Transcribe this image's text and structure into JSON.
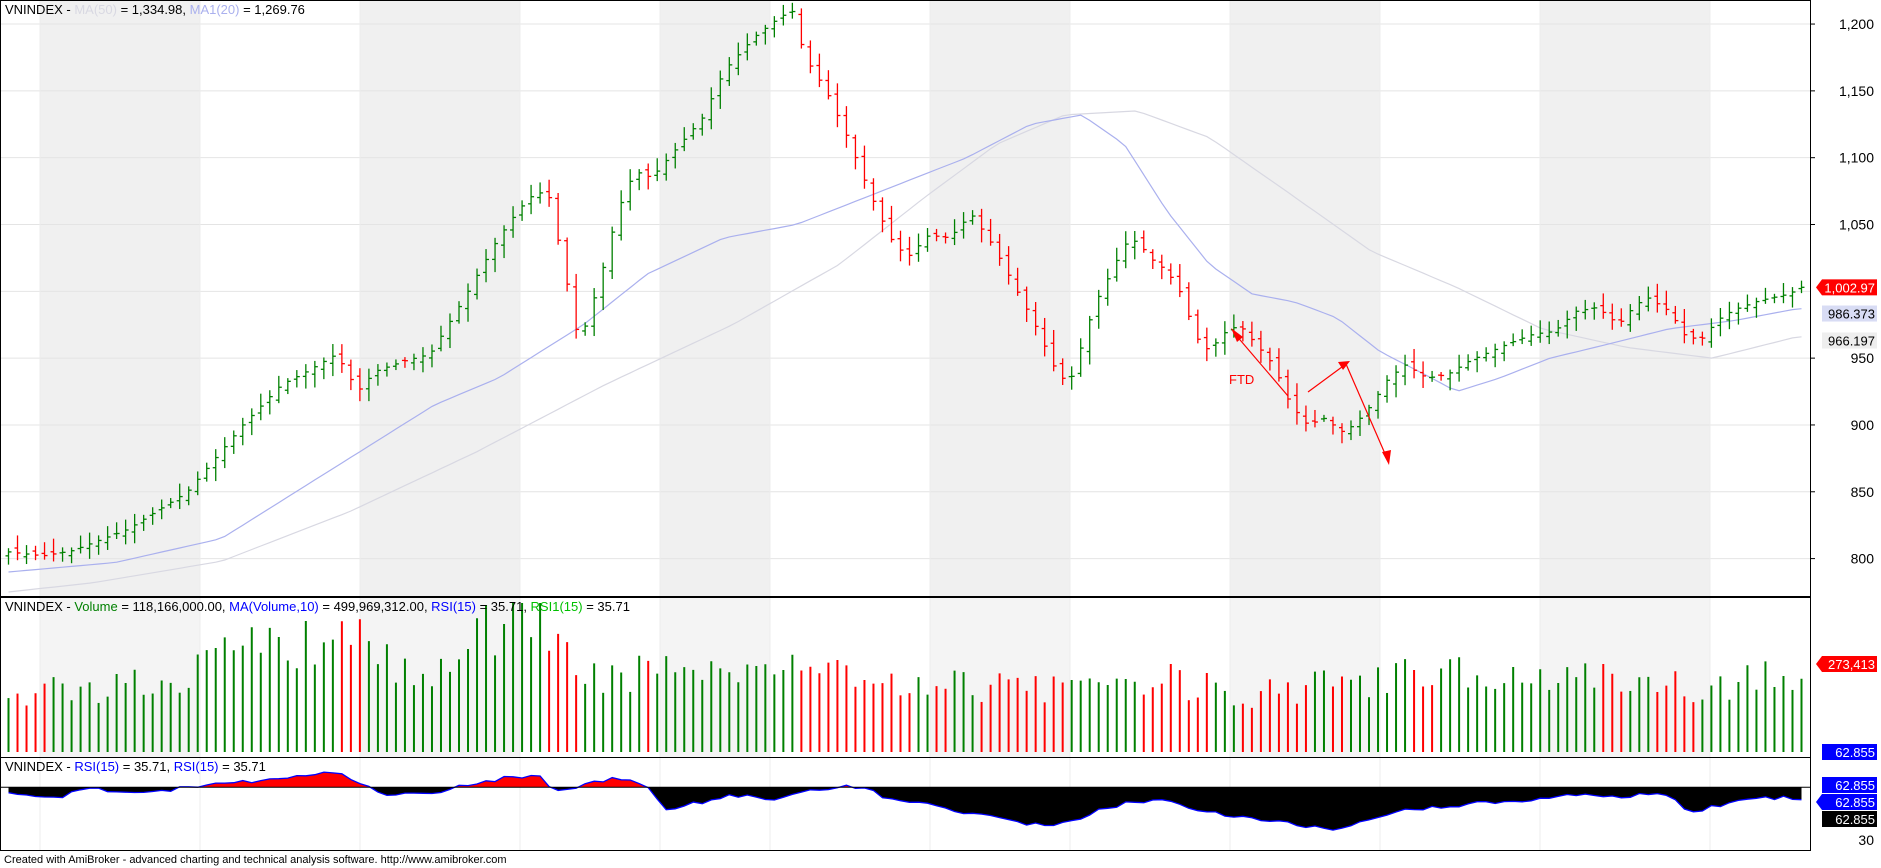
{
  "app": {
    "footer": "Created with AmiBroker - advanced charting and technical analysis software. http://www.amibroker.com"
  },
  "colors": {
    "up": "#008000",
    "down": "#ff0000",
    "ma20": "#aab0ee",
    "ma50": "#d8d8e2",
    "rsi_pos": "#ff0000",
    "rsi_neg": "#000000",
    "rsi_line": "#0000ff",
    "volume_title": "#008000",
    "ma_volume_title": "#0000ff",
    "rsi_title": "#0000ff",
    "rsi1_title": "#00c000"
  },
  "price_panel": {
    "title_parts": [
      {
        "text": "VNINDEX - ",
        "color": "#000000"
      },
      {
        "text": "MA(50)",
        "color": "#d8d8e2"
      },
      {
        "text": " = 1,334.98, ",
        "color": "#000000"
      },
      {
        "text": "MA1(20)",
        "color": "#aab0ee"
      },
      {
        "text": " = 1,269.76",
        "color": "#000000"
      }
    ],
    "y_ticks": [
      "1,200",
      "1,150",
      "1,100",
      "1,050",
      "950",
      "900",
      "850",
      "800"
    ],
    "badges": [
      {
        "text": "1,002.97",
        "bg": "#ff0000",
        "fg": "#ffffff",
        "arrow": true
      },
      {
        "text": "986.373",
        "bg": "#d8dcf4",
        "fg": "#000000",
        "arrow": false
      },
      {
        "text": "966.197",
        "bg": "#eeeeee",
        "fg": "#000000",
        "arrow": false
      }
    ],
    "annotation": "FTD"
  },
  "volume_panel": {
    "title_parts": [
      {
        "text": "VNINDEX - ",
        "color": "#000000"
      },
      {
        "text": "Volume",
        "color": "#008000"
      },
      {
        "text": " = 118,166,000.00, ",
        "color": "#000000"
      },
      {
        "text": "MA(Volume,10)",
        "color": "#0000ff"
      },
      {
        "text": " = 499,969,312.00, ",
        "color": "#000000"
      },
      {
        "text": "RSI(15)",
        "color": "#0000ff"
      },
      {
        "text": " = 35.71, ",
        "color": "#000000"
      },
      {
        "text": "RSI1(15)",
        "color": "#00c000"
      },
      {
        "text": " = 35.71",
        "color": "#000000"
      }
    ],
    "badges": [
      {
        "text": "273,413",
        "bg": "#ff0000",
        "fg": "#ffffff",
        "arrow": true
      },
      {
        "text": "62.855",
        "bg": "#0000ff",
        "fg": "#ffffff",
        "arrow": false
      }
    ]
  },
  "rsi_panel": {
    "title_parts": [
      {
        "text": "VNINDEX - ",
        "color": "#000000"
      },
      {
        "text": "RSI(15)",
        "color": "#0000ff"
      },
      {
        "text": " = 35.71, ",
        "color": "#000000"
      },
      {
        "text": "RSI(15)",
        "color": "#0000ff"
      },
      {
        "text": " = 35.71",
        "color": "#000000"
      }
    ],
    "y_ticks": [
      "30"
    ],
    "badges": [
      {
        "text": "62.855",
        "bg": "#0000ff",
        "fg": "#ffffff",
        "arrow": false
      },
      {
        "text": "62.855",
        "bg": "#0000ff",
        "fg": "#ffffff",
        "arrow": true
      },
      {
        "text": "62.855",
        "bg": "#000000",
        "fg": "#ffffff",
        "arrow": false
      }
    ]
  },
  "chart_data": {
    "type": "ohlc",
    "series_name": "VNINDEX",
    "ylim": [
      775,
      1215
    ],
    "grid": true,
    "bar_count": 200,
    "close_keypoints": [
      [
        0,
        805
      ],
      [
        8,
        802
      ],
      [
        15,
        806
      ],
      [
        28,
        822
      ],
      [
        42,
        850
      ],
      [
        55,
        900
      ],
      [
        64,
        930
      ],
      [
        70,
        940
      ],
      [
        77,
        953
      ],
      [
        82,
        925
      ],
      [
        86,
        940
      ],
      [
        93,
        948
      ],
      [
        99,
        953
      ],
      [
        107,
        995
      ],
      [
        115,
        1040
      ],
      [
        120,
        1062
      ],
      [
        124,
        1075
      ],
      [
        127,
        1070
      ],
      [
        131,
        1008
      ],
      [
        134,
        960
      ],
      [
        139,
        1010
      ],
      [
        143,
        1060
      ],
      [
        147,
        1090
      ],
      [
        151,
        1085
      ],
      [
        155,
        1100
      ],
      [
        163,
        1130
      ],
      [
        168,
        1165
      ],
      [
        175,
        1190
      ],
      [
        181,
        1205
      ],
      [
        184,
        1210
      ],
      [
        187,
        1175
      ],
      [
        192,
        1150
      ],
      [
        197,
        1115
      ],
      [
        202,
        1075
      ],
      [
        207,
        1040
      ],
      [
        211,
        1025
      ],
      [
        216,
        1042
      ],
      [
        221,
        1040
      ],
      [
        226,
        1058
      ],
      [
        231,
        1035
      ],
      [
        236,
        1005
      ],
      [
        241,
        975
      ],
      [
        246,
        940
      ],
      [
        249,
        930
      ],
      [
        252,
        960
      ],
      [
        255,
        990
      ],
      [
        259,
        1015
      ],
      [
        262,
        1035
      ],
      [
        265,
        1038
      ],
      [
        268,
        1025
      ],
      [
        272,
        1015
      ],
      [
        275,
        1000
      ],
      [
        279,
        965
      ],
      [
        282,
        955
      ],
      [
        285,
        968
      ],
      [
        289,
        975
      ],
      [
        293,
        960
      ],
      [
        297,
        945
      ],
      [
        301,
        915
      ],
      [
        305,
        900
      ],
      [
        309,
        905
      ],
      [
        313,
        895
      ],
      [
        316,
        900
      ],
      [
        320,
        915
      ],
      [
        324,
        935
      ],
      [
        328,
        945
      ],
      [
        333,
        935
      ],
      [
        338,
        938
      ],
      [
        343,
        948
      ],
      [
        348,
        955
      ],
      [
        353,
        962
      ],
      [
        358,
        968
      ],
      [
        363,
        970
      ],
      [
        368,
        985
      ],
      [
        373,
        988
      ],
      [
        378,
        975
      ],
      [
        382,
        990
      ],
      [
        385,
        995
      ],
      [
        390,
        985
      ],
      [
        394,
        965
      ],
      [
        398,
        965
      ],
      [
        401,
        978
      ],
      [
        405,
        986
      ],
      [
        411,
        993
      ],
      [
        418,
        998
      ],
      [
        421,
        1003
      ]
    ],
    "ma20_keypoints": [
      [
        0,
        790
      ],
      [
        25,
        797
      ],
      [
        50,
        815
      ],
      [
        80,
        875
      ],
      [
        100,
        915
      ],
      [
        115,
        935
      ],
      [
        135,
        975
      ],
      [
        150,
        1013
      ],
      [
        168,
        1040
      ],
      [
        185,
        1050
      ],
      [
        205,
        1075
      ],
      [
        225,
        1100
      ],
      [
        240,
        1125
      ],
      [
        252,
        1132
      ],
      [
        262,
        1110
      ],
      [
        272,
        1060
      ],
      [
        282,
        1020
      ],
      [
        292,
        998
      ],
      [
        302,
        992
      ],
      [
        312,
        980
      ],
      [
        322,
        955
      ],
      [
        333,
        937
      ],
      [
        340,
        925
      ],
      [
        350,
        935
      ],
      [
        362,
        950
      ],
      [
        375,
        960
      ],
      [
        390,
        972
      ],
      [
        405,
        978
      ],
      [
        420,
        987
      ]
    ],
    "ma50_keypoints": [
      [
        0,
        775
      ],
      [
        20,
        782
      ],
      [
        50,
        798
      ],
      [
        80,
        835
      ],
      [
        110,
        880
      ],
      [
        140,
        930
      ],
      [
        170,
        975
      ],
      [
        195,
        1020
      ],
      [
        215,
        1070
      ],
      [
        232,
        1110
      ],
      [
        248,
        1132
      ],
      [
        265,
        1135
      ],
      [
        282,
        1115
      ],
      [
        300,
        1075
      ],
      [
        320,
        1030
      ],
      [
        340,
        1003
      ],
      [
        360,
        972
      ],
      [
        380,
        958
      ],
      [
        400,
        950
      ],
      [
        420,
        966
      ]
    ],
    "rsi_values_keypoints": [
      [
        0,
        59
      ],
      [
        10,
        55
      ],
      [
        20,
        62
      ],
      [
        30,
        58
      ],
      [
        40,
        62
      ],
      [
        50,
        66
      ],
      [
        60,
        68
      ],
      [
        70,
        72
      ],
      [
        78,
        74
      ],
      [
        82,
        66
      ],
      [
        90,
        57
      ],
      [
        98,
        58
      ],
      [
        108,
        65
      ],
      [
        118,
        70
      ],
      [
        124,
        72
      ],
      [
        128,
        61
      ],
      [
        138,
        66
      ],
      [
        143,
        69
      ],
      [
        148,
        66
      ],
      [
        150,
        62
      ],
      [
        154,
        47
      ],
      [
        162,
        52
      ],
      [
        170,
        57
      ],
      [
        180,
        55
      ],
      [
        188,
        60
      ],
      [
        196,
        63
      ],
      [
        202,
        62
      ],
      [
        205,
        55
      ],
      [
        215,
        52
      ],
      [
        225,
        44
      ],
      [
        235,
        40
      ],
      [
        245,
        34
      ],
      [
        252,
        42
      ],
      [
        262,
        52
      ],
      [
        270,
        54
      ],
      [
        278,
        48
      ],
      [
        285,
        44
      ],
      [
        292,
        40
      ],
      [
        298,
        38
      ],
      [
        305,
        35
      ],
      [
        312,
        32
      ],
      [
        320,
        40
      ],
      [
        330,
        48
      ],
      [
        340,
        50
      ],
      [
        350,
        53
      ],
      [
        360,
        55
      ],
      [
        370,
        58
      ],
      [
        380,
        56
      ],
      [
        388,
        59
      ],
      [
        395,
        46
      ],
      [
        402,
        50
      ],
      [
        410,
        56
      ],
      [
        420,
        55
      ]
    ],
    "volume_keypoints": [
      [
        0,
        40
      ],
      [
        20,
        42
      ],
      [
        40,
        48
      ],
      [
        60,
        72
      ],
      [
        75,
        68
      ],
      [
        80,
        75
      ],
      [
        90,
        55
      ],
      [
        100,
        50
      ],
      [
        110,
        75
      ],
      [
        118,
        90
      ],
      [
        124,
        100
      ],
      [
        127,
        82
      ],
      [
        131,
        68
      ],
      [
        135,
        50
      ],
      [
        145,
        52
      ],
      [
        160,
        55
      ],
      [
        170,
        58
      ],
      [
        180,
        55
      ],
      [
        190,
        58
      ],
      [
        200,
        48
      ],
      [
        215,
        45
      ],
      [
        230,
        42
      ],
      [
        250,
        42
      ],
      [
        270,
        48
      ],
      [
        290,
        38
      ],
      [
        310,
        45
      ],
      [
        330,
        50
      ],
      [
        345,
        52
      ],
      [
        360,
        50
      ],
      [
        380,
        45
      ],
      [
        400,
        42
      ],
      [
        420,
        52
      ]
    ]
  }
}
